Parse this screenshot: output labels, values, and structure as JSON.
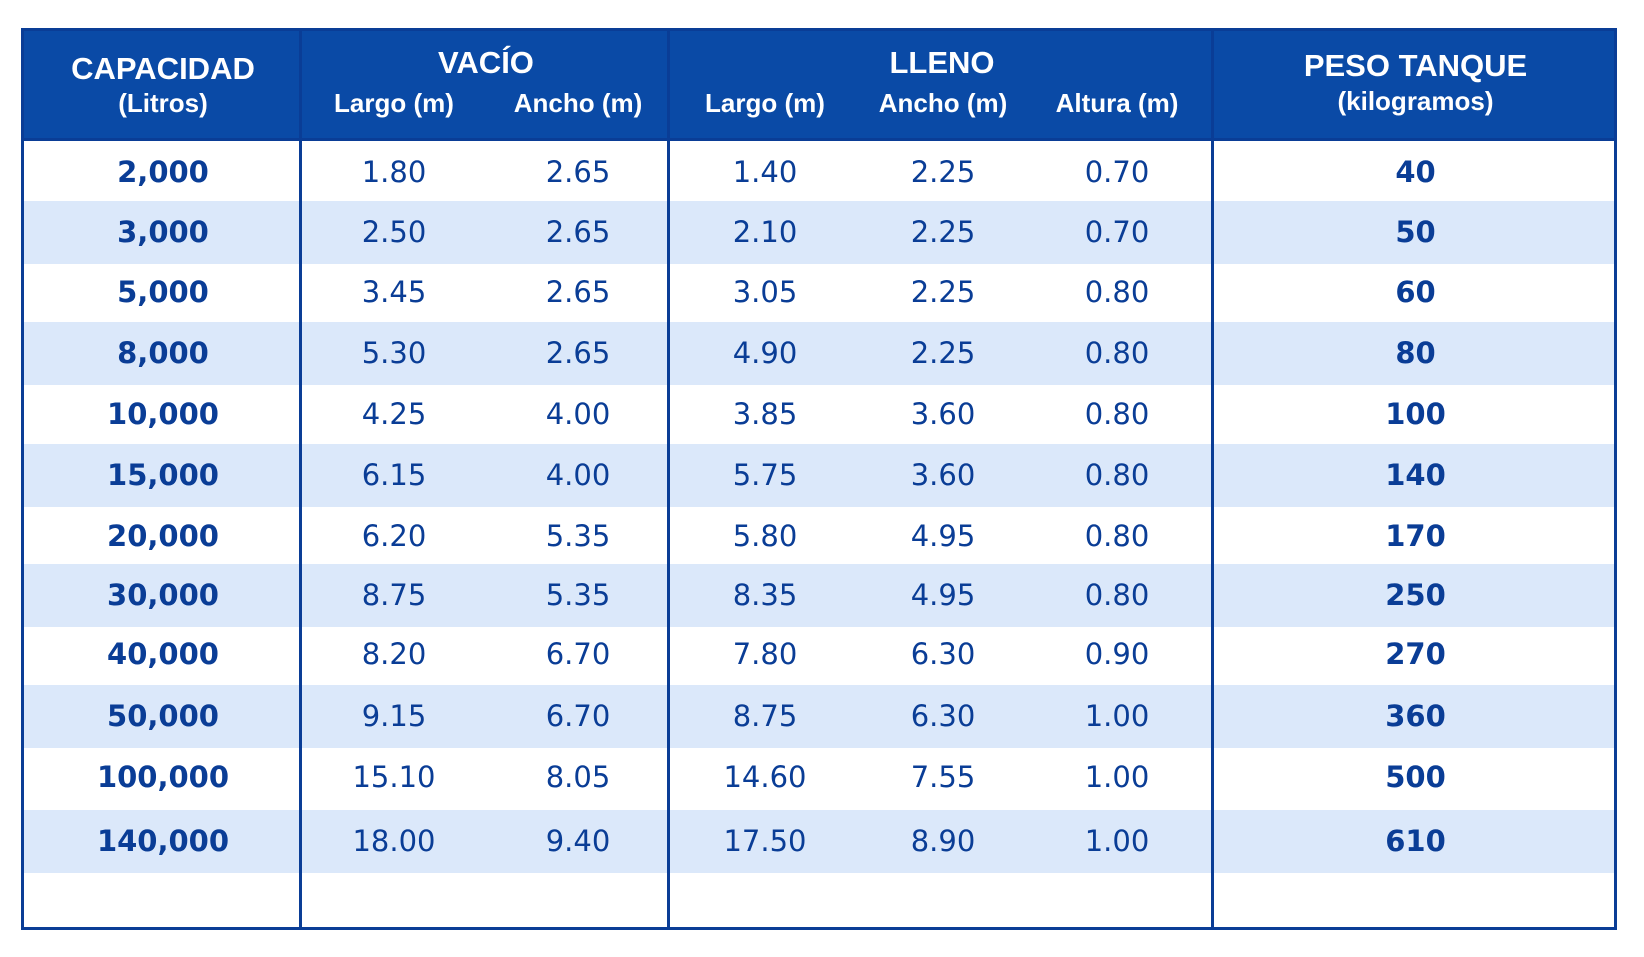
{
  "header": {
    "capacidad": {
      "title": "CAPACIDAD",
      "sub": "(Litros)"
    },
    "vacio": {
      "title": "VACÍO",
      "cols": [
        "Largo (m)",
        "Ancho (m)"
      ]
    },
    "lleno": {
      "title": "LLENO",
      "cols": [
        "Largo (m)",
        "Ancho (m)",
        "Altura (m)"
      ]
    },
    "peso": {
      "title": "PESO TANQUE",
      "sub": "(kilogramos)"
    }
  },
  "rows": [
    {
      "capacidad": "2,000",
      "vacio_largo": "1.80",
      "vacio_ancho": "2.65",
      "lleno_largo": "1.40",
      "lleno_ancho": "2.25",
      "lleno_altura": "0.70",
      "peso": "40"
    },
    {
      "capacidad": "3,000",
      "vacio_largo": "2.50",
      "vacio_ancho": "2.65",
      "lleno_largo": "2.10",
      "lleno_ancho": "2.25",
      "lleno_altura": "0.70",
      "peso": "50"
    },
    {
      "capacidad": "5,000",
      "vacio_largo": "3.45",
      "vacio_ancho": "2.65",
      "lleno_largo": "3.05",
      "lleno_ancho": "2.25",
      "lleno_altura": "0.80",
      "peso": "60"
    },
    {
      "capacidad": "8,000",
      "vacio_largo": "5.30",
      "vacio_ancho": "2.65",
      "lleno_largo": "4.90",
      "lleno_ancho": "2.25",
      "lleno_altura": "0.80",
      "peso": "80"
    },
    {
      "capacidad": "10,000",
      "vacio_largo": "4.25",
      "vacio_ancho": "4.00",
      "lleno_largo": "3.85",
      "lleno_ancho": "3.60",
      "lleno_altura": "0.80",
      "peso": "100"
    },
    {
      "capacidad": "15,000",
      "vacio_largo": "6.15",
      "vacio_ancho": "4.00",
      "lleno_largo": "5.75",
      "lleno_ancho": "3.60",
      "lleno_altura": "0.80",
      "peso": "140"
    },
    {
      "capacidad": "20,000",
      "vacio_largo": "6.20",
      "vacio_ancho": "5.35",
      "lleno_largo": "5.80",
      "lleno_ancho": "4.95",
      "lleno_altura": "0.80",
      "peso": "170"
    },
    {
      "capacidad": "30,000",
      "vacio_largo": "8.75",
      "vacio_ancho": "5.35",
      "lleno_largo": "8.35",
      "lleno_ancho": "4.95",
      "lleno_altura": "0.80",
      "peso": "250"
    },
    {
      "capacidad": "40,000",
      "vacio_largo": "8.20",
      "vacio_ancho": "6.70",
      "lleno_largo": "7.80",
      "lleno_ancho": "6.30",
      "lleno_altura": "0.90",
      "peso": "270"
    },
    {
      "capacidad": "50,000",
      "vacio_largo": "9.15",
      "vacio_ancho": "6.70",
      "lleno_largo": "8.75",
      "lleno_ancho": "6.30",
      "lleno_altura": "1.00",
      "peso": "360"
    },
    {
      "capacidad": "100,000",
      "vacio_largo": "15.10",
      "vacio_ancho": "8.05",
      "lleno_largo": "14.60",
      "lleno_ancho": "7.55",
      "lleno_altura": "1.00",
      "peso": "500"
    },
    {
      "capacidad": "140,000",
      "vacio_largo": "18.00",
      "vacio_ancho": "9.40",
      "lleno_largo": "17.50",
      "lleno_ancho": "8.90",
      "lleno_altura": "1.00",
      "peso": "610"
    }
  ],
  "colors": {
    "header_bg": "#0a4aa6",
    "border": "#0a3d96",
    "text": "#0a3d96",
    "alt_row_bg": "#dbe8fa"
  }
}
